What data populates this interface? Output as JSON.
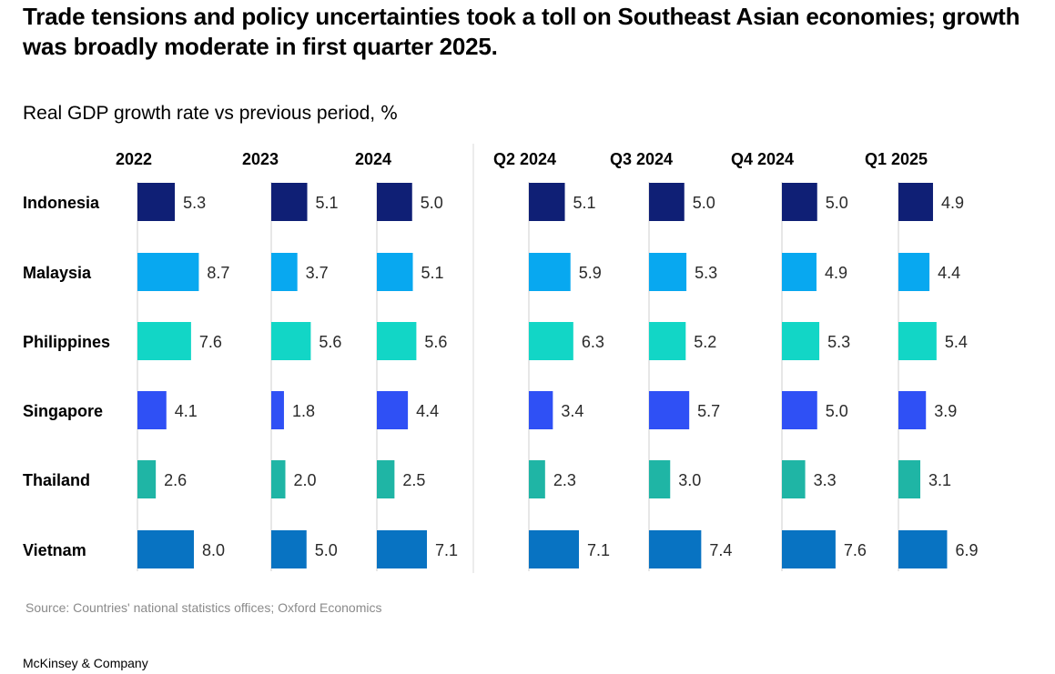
{
  "header": {
    "title": "Trade tensions and policy uncertainties took a toll on Southeast Asian economies; growth was broadly moderate in first quarter 2025.",
    "subtitle": "Real GDP growth rate vs previous period,",
    "subtitle_unit": "%"
  },
  "footer": {
    "source": "Source: Countries' national statistics offices; Oxford Economics",
    "brand": "McKinsey & Company"
  },
  "colors": {
    "Indonesia": "#0f1f75",
    "Malaysia": "#08a8f0",
    "Philippines": "#12d6c6",
    "Singapore": "#2f50f5",
    "Thailand": "#1fb5a5",
    "Vietnam": "#0873c2",
    "axis": "#cfcfcf",
    "separator": "#d9d9d9"
  },
  "chart_data": {
    "type": "bar",
    "orientation": "horizontal",
    "title": "Real GDP growth rate vs previous period, %",
    "categories": [
      "Indonesia",
      "Malaysia",
      "Philippines",
      "Singapore",
      "Thailand",
      "Vietnam"
    ],
    "series": [
      {
        "name": "2022",
        "values": [
          5.3,
          8.7,
          7.6,
          4.1,
          2.6,
          8.0
        ]
      },
      {
        "name": "2023",
        "values": [
          5.1,
          3.7,
          5.6,
          1.8,
          2.0,
          5.0
        ]
      },
      {
        "name": "2024",
        "values": [
          5.0,
          5.1,
          5.6,
          4.4,
          2.5,
          7.1
        ]
      },
      {
        "name": "Q2 2024",
        "values": [
          5.1,
          5.9,
          6.3,
          3.4,
          2.3,
          7.1
        ]
      },
      {
        "name": "Q3 2024",
        "values": [
          5.0,
          5.3,
          5.2,
          5.7,
          3.0,
          7.4
        ]
      },
      {
        "name": "Q4 2024",
        "values": [
          5.0,
          4.9,
          5.3,
          5.0,
          3.3,
          7.6
        ]
      },
      {
        "name": "Q1 2025",
        "values": [
          4.9,
          4.4,
          5.4,
          3.9,
          3.1,
          6.9
        ]
      }
    ],
    "xlim": [
      0,
      10
    ],
    "grid": false,
    "legend": "none"
  }
}
